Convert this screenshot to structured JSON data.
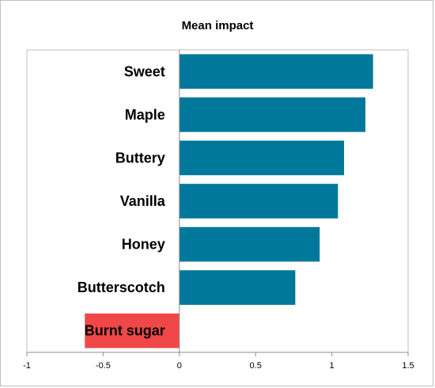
{
  "chart_data": {
    "type": "bar",
    "orientation": "horizontal",
    "title": "Mean impact",
    "xlabel": "",
    "ylabel": "",
    "categories": [
      "Sweet",
      "Maple",
      "Buttery",
      "Vanilla",
      "Honey",
      "Butterscotch",
      "Burnt sugar"
    ],
    "values": [
      1.27,
      1.22,
      1.08,
      1.04,
      0.92,
      0.76,
      -0.62
    ],
    "xlim": [
      -1,
      1.5
    ],
    "xticks": [
      -1,
      -0.5,
      0,
      0.5,
      1,
      1.5
    ],
    "xtick_labels": [
      "-1",
      "-0.5",
      "0",
      "0.5",
      "1",
      "1.5"
    ],
    "grid": false,
    "legend": "none",
    "colors": {
      "positive": "#00789b",
      "negative": "#f04848",
      "axis": "#8c8c8c",
      "plot_border": "#bfbfbf"
    }
  }
}
